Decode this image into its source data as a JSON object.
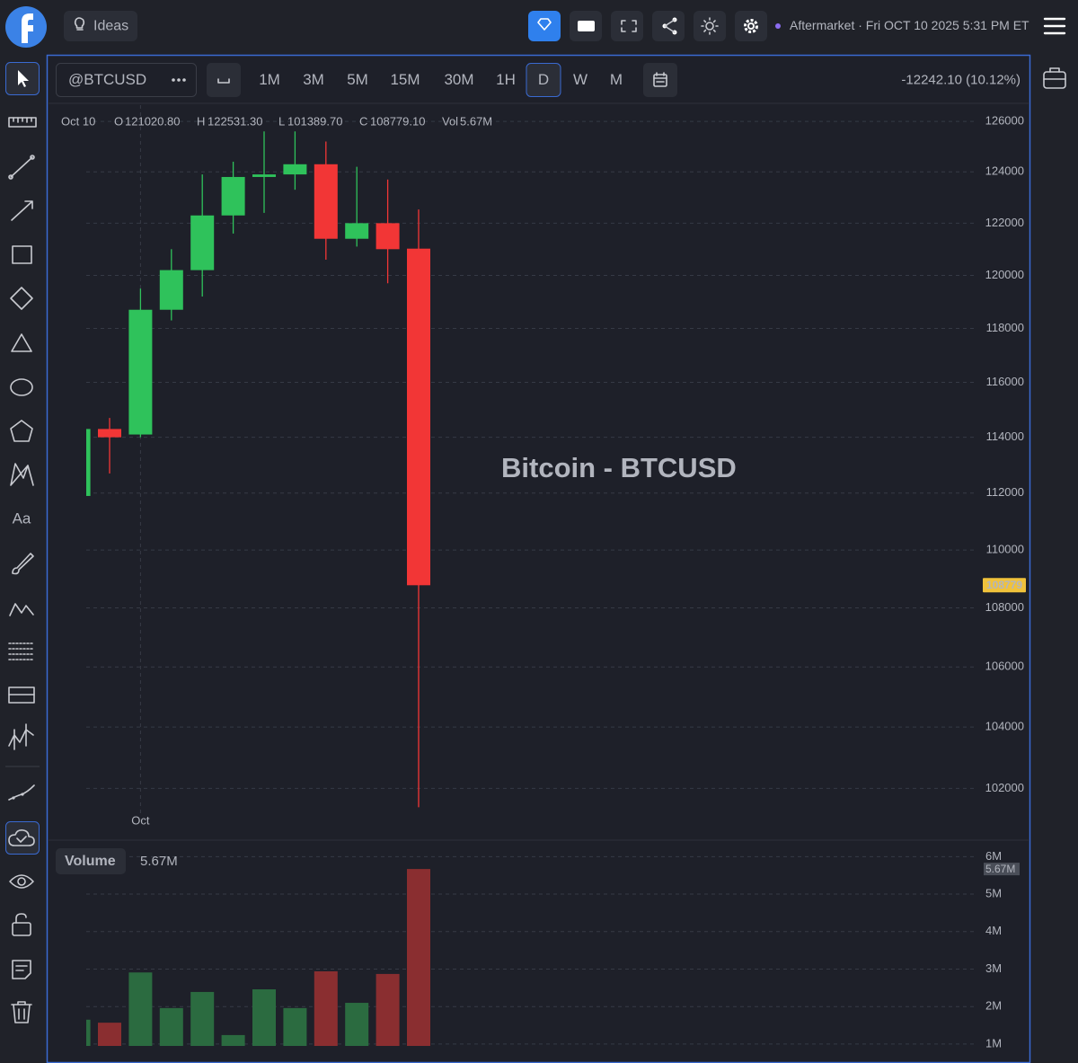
{
  "top_bar": {
    "ideas": "Ideas",
    "session": "Aftermarket · Fri OCT 10 2025 5:31 PM ET"
  },
  "left_toolbar": {
    "text_tool": "Aa"
  },
  "toolbar": {
    "symbol": "@BTCUSD",
    "timeframes": [
      "1M",
      "3M",
      "5M",
      "15M",
      "30M",
      "1H",
      "D",
      "W",
      "M"
    ],
    "selected": "D",
    "change": "-12242.10 (10.12%)"
  },
  "chart_data": [
    {
      "type": "candlestick",
      "title": "Bitcoin - BTCUSD",
      "legend_date": "Oct 10",
      "legend_labels": [
        "O",
        "H",
        "L",
        "C",
        "Vol"
      ],
      "legend_values": [
        "121020.80",
        "122531.30",
        "101389.70",
        "108779.10",
        "5.67M"
      ],
      "categories": [
        null,
        null,
        "Oct",
        null,
        null,
        null,
        null,
        null,
        null,
        null,
        null,
        null
      ],
      "open": [
        111900,
        114300,
        114100,
        118700,
        120200,
        122300,
        123800,
        123900,
        124300,
        121400,
        122000,
        121020.8
      ],
      "high": [
        114400,
        114700,
        119500,
        121000,
        123900,
        124400,
        125600,
        125600,
        125200,
        124200,
        123700,
        122531.3
      ],
      "low": [
        111800,
        112700,
        114000,
        118300,
        119200,
        121600,
        122400,
        123300,
        120600,
        121100,
        119700,
        101389.7
      ],
      "close": [
        114300,
        114000,
        118700,
        120200,
        122300,
        123800,
        123900,
        124300,
        121400,
        122000,
        121000,
        108779.1
      ],
      "up_color": "#2fc25b",
      "down_color": "#f23636",
      "log_scale": true,
      "ylim": [
        101200,
        126650
      ],
      "yticks": [
        102000,
        104000,
        106000,
        108000,
        110000,
        112000,
        114000,
        116000,
        118000,
        120000,
        122000,
        124000,
        126000
      ],
      "last_price_label": "108779",
      "grid": true
    },
    {
      "type": "bar",
      "title": "Volume",
      "values": [
        1650000,
        1570000,
        2910000,
        1960000,
        2390000,
        1240000,
        2460000,
        1960000,
        2940000,
        2100000,
        2870000,
        5670000
      ],
      "value_label": "5.67M",
      "up_color": "#2b6b40",
      "down_color": "#8a2e30",
      "ylim": [
        950000,
        6200000
      ],
      "yticks": [
        {
          "value": 1000000,
          "label": "1M"
        },
        {
          "value": 2000000,
          "label": "2M"
        },
        {
          "value": 3000000,
          "label": "3M"
        },
        {
          "value": 4000000,
          "label": "4M"
        },
        {
          "value": 5000000,
          "label": "5M"
        },
        {
          "value": 6000000,
          "label": "6M"
        }
      ],
      "grid": true
    }
  ]
}
